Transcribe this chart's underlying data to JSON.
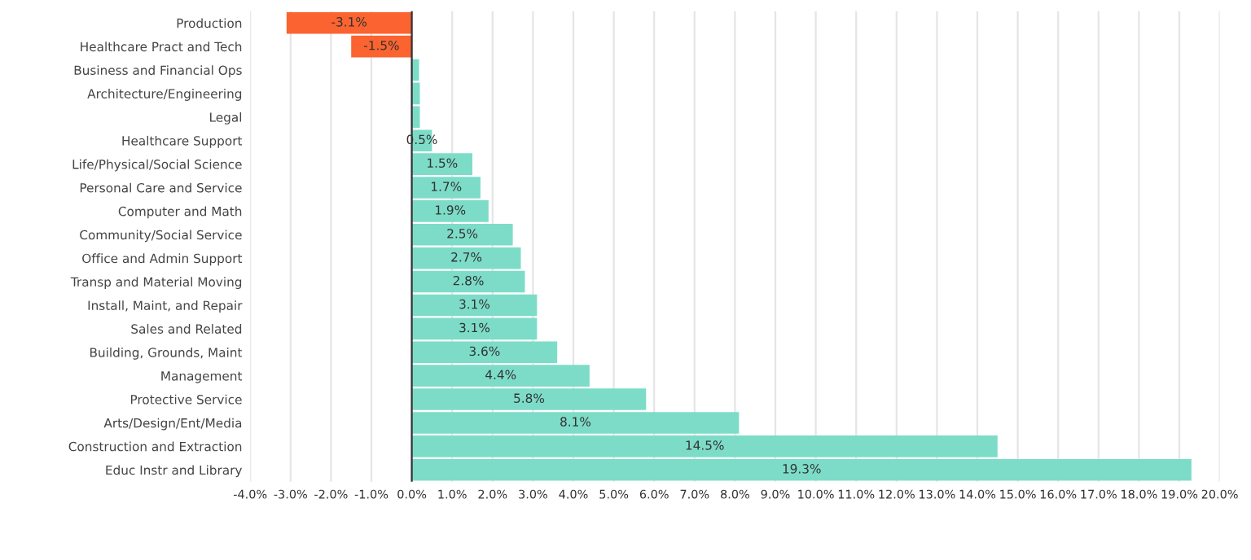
{
  "chart_data": {
    "type": "bar",
    "orientation": "horizontal",
    "categories": [
      "Production",
      "Healthcare Pract and Tech",
      "Business and Financial Ops",
      "Architecture/Engineering",
      "Legal",
      "Healthcare Support",
      "Life/Physical/Social Science",
      "Personal Care and Service",
      "Computer and Math",
      "Community/Social Service",
      "Office and Admin Support",
      "Transp and Material Moving",
      "Install, Maint, and Repair",
      "Sales and Related",
      "Building, Grounds, Maint",
      "Management",
      "Protective Service",
      "Arts/Design/Ent/Media",
      "Construction and Extraction",
      "Educ Instr and Library"
    ],
    "values": [
      -3.1,
      -1.5,
      0.18,
      0.2,
      0.2,
      0.5,
      1.5,
      1.7,
      1.9,
      2.5,
      2.7,
      2.8,
      3.1,
      3.1,
      3.6,
      4.4,
      5.8,
      8.1,
      14.5,
      19.3
    ],
    "value_labels": [
      "-3.1%",
      "-1.5%",
      null,
      null,
      null,
      "0.5%",
      "1.5%",
      "1.7%",
      "1.9%",
      "2.5%",
      "2.7%",
      "2.8%",
      "3.1%",
      "3.1%",
      "3.6%",
      "4.4%",
      "5.8%",
      "8.1%",
      "14.5%",
      "19.3%"
    ],
    "colors": [
      "#fb6330",
      "#fb6330",
      "#7ddcc8",
      "#7ddcc8",
      "#7ddcc8",
      "#7ddcc8",
      "#7ddcc8",
      "#7ddcc8",
      "#7ddcc8",
      "#7ddcc8",
      "#7ddcc8",
      "#7ddcc8",
      "#7ddcc8",
      "#7ddcc8",
      "#7ddcc8",
      "#7ddcc8",
      "#7ddcc8",
      "#7ddcc8",
      "#7ddcc8",
      "#7ddcc8"
    ],
    "xlim": [
      -4.0,
      20.0
    ],
    "xticks": [
      {
        "value": -4,
        "label": "-4.0%"
      },
      {
        "value": -3,
        "label": "-3.0%"
      },
      {
        "value": -2,
        "label": "-2.0%"
      },
      {
        "value": -1,
        "label": "-1.0%"
      },
      {
        "value": 0,
        "label": "0.0%"
      },
      {
        "value": 1,
        "label": "1.0%"
      },
      {
        "value": 2,
        "label": "2.0%"
      },
      {
        "value": 3,
        "label": "3.0%"
      },
      {
        "value": 4,
        "label": "4.0%"
      },
      {
        "value": 5,
        "label": "5.0%"
      },
      {
        "value": 6,
        "label": "6.0%"
      },
      {
        "value": 7,
        "label": "7.0%"
      },
      {
        "value": 8,
        "label": "8.0%"
      },
      {
        "value": 9,
        "label": "9.0%"
      },
      {
        "value": 10,
        "label": "10.0%"
      },
      {
        "value": 11,
        "label": "11.0%"
      },
      {
        "value": 12,
        "label": "12.0%"
      },
      {
        "value": 13,
        "label": "13.0%"
      },
      {
        "value": 14,
        "label": "14.0%"
      },
      {
        "value": 15,
        "label": "15.0%"
      },
      {
        "value": 16,
        "label": "16.0%"
      },
      {
        "value": 17,
        "label": "17.0%"
      },
      {
        "value": 18,
        "label": "18.0%"
      },
      {
        "value": 19,
        "label": "19.0%"
      },
      {
        "value": 20,
        "label": "20.0%"
      }
    ],
    "grid": "x",
    "legend": false
  }
}
